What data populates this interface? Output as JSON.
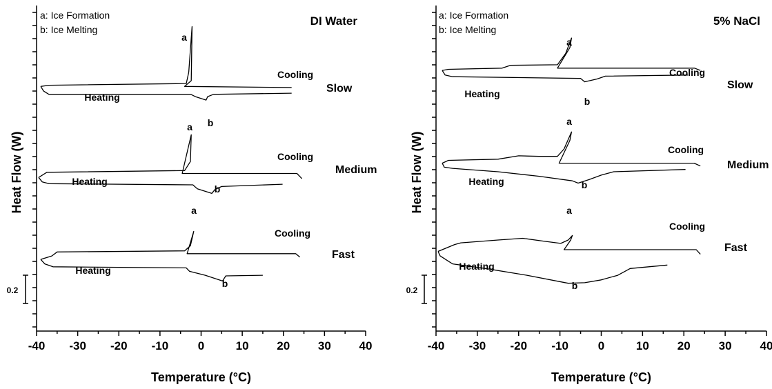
{
  "chart_data": [
    {
      "type": "line",
      "title": "DI Water",
      "xlabel": "Temperature (°C)",
      "ylabel": "Heat Flow (W)",
      "xlim": [
        -40,
        40
      ],
      "xticks": [
        "-40",
        "-30",
        "-20",
        "-10",
        "0",
        "10",
        "20",
        "30",
        "40"
      ],
      "legend": [
        "a: Ice Formation",
        "b: Ice Melting"
      ],
      "legend_position": "top-left",
      "scale_bar_label": "0.2",
      "traces": [
        {
          "rate": "Slow",
          "cooling_label": "Cooling",
          "heating_label": "Heating",
          "label_a": "a",
          "label_b": "b",
          "cooling": [
            [
              22,
              4.28
            ],
            [
              -4.0,
              4.3
            ],
            [
              -2.4,
              4.4
            ],
            [
              -2.2,
              5.35
            ],
            [
              -3.0,
              4.55
            ],
            [
              -3.6,
              4.35
            ],
            [
              -37,
              4.32
            ],
            [
              -39,
              4.3
            ]
          ],
          "heating": [
            [
              -39,
              4.3
            ],
            [
              -38.3,
              4.22
            ],
            [
              -37,
              4.16
            ],
            [
              -2.5,
              4.16
            ],
            [
              -1.4,
              4.12
            ],
            [
              1.2,
              4.06
            ],
            [
              1.6,
              4.12
            ],
            [
              3.0,
              4.16
            ],
            [
              22,
              4.18
            ]
          ]
        },
        {
          "rate": "Medium",
          "cooling_label": "Cooling",
          "heating_label": "Heating",
          "label_a": "a",
          "label_b": "b",
          "cooling": [
            [
              24.5,
              2.68
            ],
            [
              23.3,
              2.77
            ],
            [
              -4.6,
              2.77
            ],
            [
              -2.4,
              3.45
            ],
            [
              -2.6,
              2.98
            ],
            [
              -4.0,
              2.82
            ],
            [
              -37.5,
              2.79
            ],
            [
              -39.5,
              2.7
            ]
          ],
          "heating": [
            [
              -39.5,
              2.7
            ],
            [
              -38.6,
              2.62
            ],
            [
              -37,
              2.59
            ],
            [
              -2.0,
              2.57
            ],
            [
              -0.9,
              2.5
            ],
            [
              2.6,
              2.42
            ],
            [
              3.4,
              2.49
            ],
            [
              5.0,
              2.54
            ],
            [
              19.8,
              2.58
            ]
          ]
        },
        {
          "rate": "Fast",
          "cooling_label": "Cooling",
          "heating_label": "Heating",
          "label_a": "a",
          "label_b": "b",
          "cooling": [
            [
              24,
              1.3
            ],
            [
              23,
              1.36
            ],
            [
              -3.4,
              1.36
            ],
            [
              -1.8,
              1.75
            ],
            [
              -2.6,
              1.5
            ],
            [
              -4.0,
              1.41
            ],
            [
              -35,
              1.39
            ],
            [
              -36.3,
              1.32
            ],
            [
              -39,
              1.26
            ]
          ],
          "heating": [
            [
              -39,
              1.26
            ],
            [
              -38,
              1.18
            ],
            [
              -36,
              1.13
            ],
            [
              -3.6,
              1.11
            ],
            [
              -2.8,
              1.05
            ],
            [
              1.0,
              0.98
            ],
            [
              5.2,
              0.88
            ],
            [
              6.0,
              0.97
            ],
            [
              15,
              0.98
            ]
          ]
        }
      ]
    },
    {
      "type": "line",
      "title": "5% NaCl",
      "xlabel": "Temperature (°C)",
      "ylabel": "Heat Flow (W)",
      "xlim": [
        -40,
        40
      ],
      "xticks": [
        "-40",
        "-30",
        "-20",
        "-10",
        "0",
        "10",
        "20",
        "30",
        "40"
      ],
      "legend": [
        "a: Ice Formation",
        "b: Ice Melting"
      ],
      "legend_position": "top-left",
      "scale_bar_label": "0.2",
      "traces": [
        {
          "rate": "Slow",
          "cooling_label": "Cooling",
          "heating_label": "Heating",
          "label_a": "a",
          "label_b": "b",
          "cooling": [
            [
              24,
              4.58
            ],
            [
              22.6,
              4.62
            ],
            [
              -10.6,
              4.62
            ],
            [
              -7.6,
              4.98
            ],
            [
              -7.2,
              5.15
            ],
            [
              -8.6,
              4.88
            ],
            [
              -10.6,
              4.68
            ],
            [
              -22,
              4.67
            ],
            [
              -24,
              4.62
            ],
            [
              -37,
              4.6
            ],
            [
              -38.5,
              4.58
            ]
          ],
          "heating": [
            [
              -38.5,
              4.58
            ],
            [
              -37.8,
              4.5
            ],
            [
              -36,
              4.47
            ],
            [
              -5.0,
              4.44
            ],
            [
              -4.0,
              4.38
            ],
            [
              -1.0,
              4.43
            ],
            [
              1.0,
              4.48
            ],
            [
              21,
              4.5
            ]
          ]
        },
        {
          "rate": "Medium",
          "cooling_label": "Cooling",
          "heating_label": "Heating",
          "label_a": "a",
          "label_b": "b",
          "cooling": [
            [
              24,
              2.9
            ],
            [
              22.5,
              2.95
            ],
            [
              -10.2,
              2.95
            ],
            [
              -7.6,
              3.35
            ],
            [
              -7.2,
              3.5
            ],
            [
              -9.0,
              3.2
            ],
            [
              -10.6,
              3.07
            ],
            [
              -15,
              3.07
            ],
            [
              -20,
              3.08
            ],
            [
              -25,
              3.02
            ],
            [
              -37,
              3.0
            ],
            [
              -38.5,
              2.95
            ]
          ],
          "heating": [
            [
              -38.5,
              2.95
            ],
            [
              -38,
              2.88
            ],
            [
              -36,
              2.86
            ],
            [
              -25,
              2.8
            ],
            [
              -15,
              2.72
            ],
            [
              -7,
              2.64
            ],
            [
              -5.6,
              2.6
            ],
            [
              -3,
              2.66
            ],
            [
              0,
              2.74
            ],
            [
              3,
              2.8
            ],
            [
              20.4,
              2.84
            ]
          ]
        },
        {
          "rate": "Fast",
          "cooling_label": "Cooling",
          "heating_label": "Heating",
          "label_a": "a",
          "label_b": "b",
          "cooling": [
            [
              24,
              1.35
            ],
            [
              23,
              1.43
            ],
            [
              -9.0,
              1.43
            ],
            [
              -7.4,
              1.6
            ],
            [
              -7.0,
              1.68
            ],
            [
              -8.0,
              1.6
            ],
            [
              -9.8,
              1.54
            ],
            [
              -14,
              1.58
            ],
            [
              -19,
              1.63
            ],
            [
              -25,
              1.6
            ],
            [
              -34,
              1.55
            ],
            [
              -35.5,
              1.52
            ],
            [
              -39.5,
              1.4
            ]
          ],
          "heating": [
            [
              -39.5,
              1.4
            ],
            [
              -39,
              1.32
            ],
            [
              -36,
              1.18
            ],
            [
              -28,
              1.1
            ],
            [
              -18,
              0.98
            ],
            [
              -8,
              0.84
            ],
            [
              -4,
              0.85
            ],
            [
              0,
              0.9
            ],
            [
              4,
              0.98
            ],
            [
              7,
              1.1
            ],
            [
              16,
              1.16
            ]
          ]
        }
      ]
    }
  ]
}
